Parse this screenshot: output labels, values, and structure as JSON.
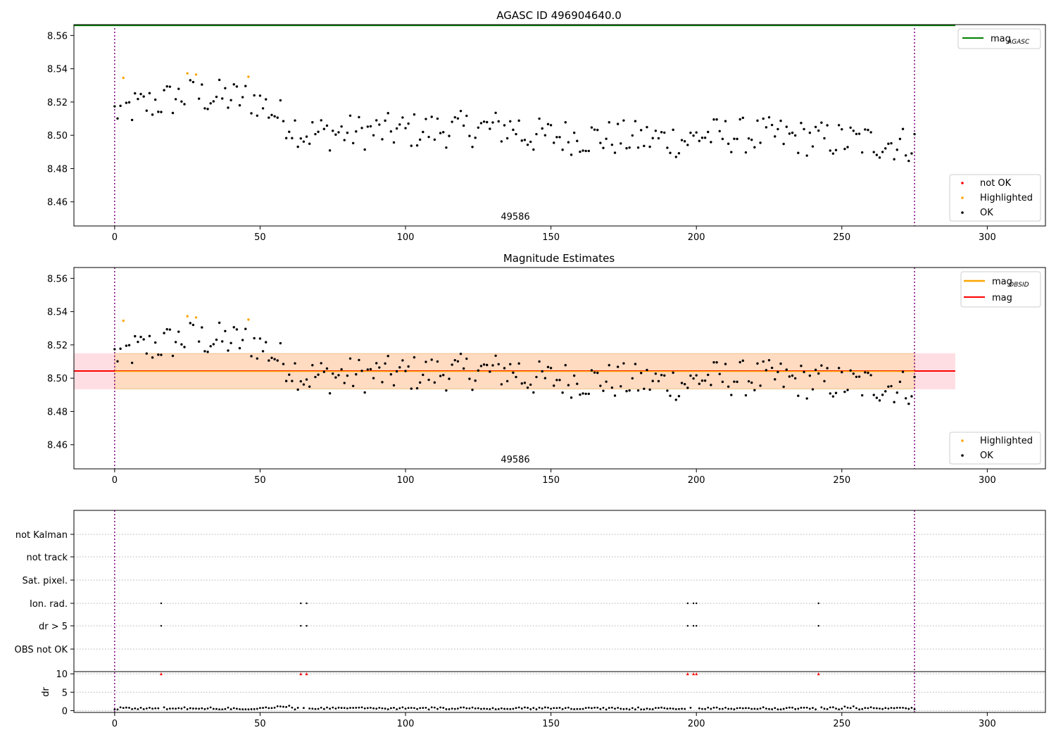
{
  "colors": {
    "ok": "#000000",
    "highlighted": "#ffa500",
    "not_ok": "#ff0000",
    "mag_agasc": "#008000",
    "mag_obsid": "#ffa500",
    "mag": "#ff0000",
    "band_mag": "#ffb6c1",
    "band_obsid": "#ffd9a8",
    "obs_boundary": "#800080",
    "grid": "#b0b0b0"
  },
  "chart_data": [
    {
      "type": "scatter",
      "title": "AGASC ID 496904640.0",
      "xlim": [
        -14,
        320
      ],
      "ylim": [
        8.4455,
        8.5665
      ],
      "xticks": [
        0,
        50,
        100,
        150,
        200,
        250,
        300
      ],
      "yticks": [
        8.46,
        8.48,
        8.5,
        8.52,
        8.54,
        8.56
      ],
      "ytick_labels": [
        "8.46",
        "8.48",
        "8.50",
        "8.52",
        "8.54",
        "8.56"
      ],
      "obsid_label": "49586",
      "obs_boundaries": [
        0,
        275
      ],
      "hline": {
        "name": "mag_AGASC",
        "y": 8.566,
        "x": [
          -14,
          289
        ]
      },
      "legend_lines": [
        {
          "label": "mag",
          "sub": "AGASC",
          "color": "#008000"
        }
      ],
      "legend_points": [
        {
          "label": "not OK",
          "color": "#ff0000"
        },
        {
          "label": "Highlighted",
          "color": "#ffa500"
        },
        {
          "label": "OK",
          "color": "#000000"
        }
      ],
      "highlighted": [
        [
          3,
          8.5345
        ],
        [
          25,
          8.5372
        ],
        [
          28,
          8.5365
        ],
        [
          46,
          8.5352
        ]
      ]
    },
    {
      "type": "scatter",
      "title": "Magnitude Estimates",
      "xlim": [
        -14,
        320
      ],
      "ylim": [
        8.4455,
        8.5665
      ],
      "xticks": [
        0,
        50,
        100,
        150,
        200,
        250,
        300
      ],
      "yticks": [
        8.46,
        8.48,
        8.5,
        8.52,
        8.54,
        8.56
      ],
      "ytick_labels": [
        "8.46",
        "8.48",
        "8.50",
        "8.52",
        "8.54",
        "8.56"
      ],
      "obsid_label": "49586",
      "obs_boundaries": [
        0,
        275
      ],
      "mag_line": {
        "y": 8.5043,
        "x": [
          -14,
          289
        ]
      },
      "mag_obsid_line": {
        "y": 8.5045,
        "x": [
          0,
          275
        ]
      },
      "mag_band": [
        8.4933,
        8.515
      ],
      "obsid_band": [
        8.4935,
        8.5148
      ],
      "legend_lines": [
        {
          "label": "mag",
          "sub": "OBSID",
          "color": "#ffa500"
        },
        {
          "label": "mag",
          "sub": "",
          "color": "#ff0000"
        }
      ],
      "legend_points": [
        {
          "label": "Highlighted",
          "color": "#ffa500"
        },
        {
          "label": "OK",
          "color": "#000000"
        }
      ],
      "highlighted": [
        [
          3,
          8.5345
        ],
        [
          25,
          8.5372
        ],
        [
          28,
          8.5365
        ],
        [
          46,
          8.5352
        ]
      ]
    },
    {
      "type": "scatter",
      "title": "",
      "xlim": [
        -14,
        320
      ],
      "xticks": [
        0,
        50,
        100,
        150,
        200,
        250,
        300
      ],
      "flag_rows": [
        "not Kalman",
        "not track",
        "Sat. pixel.",
        "Ion. rad.",
        "dr > 5",
        "OBS not OK"
      ],
      "flag_points": {
        "Ion. rad.": [
          16,
          64,
          66,
          197,
          199,
          200,
          242
        ],
        "dr > 5": [
          16,
          64,
          66,
          197,
          199,
          200,
          242
        ]
      },
      "dr_ylabel": "dr",
      "dr_ylim": [
        -0.5,
        10.6
      ],
      "dr_yticks": [
        0,
        5,
        10
      ],
      "dr_clipped_value": 10,
      "dr_clipped_x": [
        16,
        64,
        66,
        197,
        199,
        200,
        242
      ],
      "obs_boundaries": [
        0,
        275
      ]
    }
  ]
}
